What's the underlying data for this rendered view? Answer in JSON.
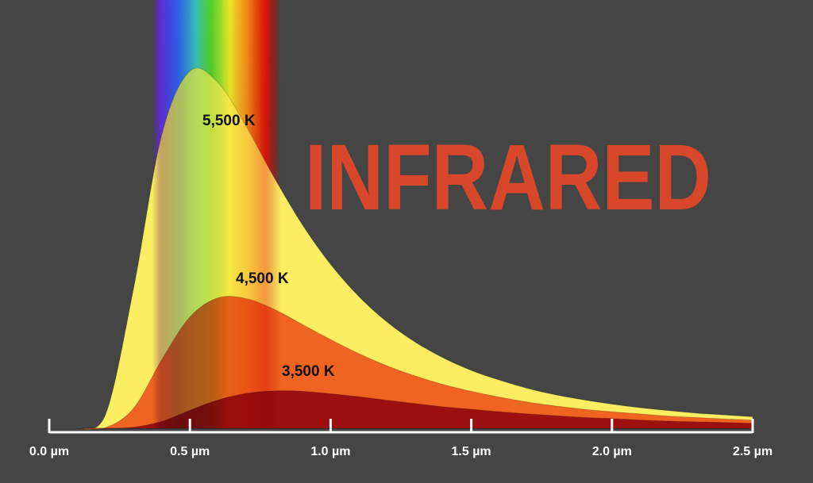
{
  "chart_data": {
    "type": "area",
    "annotation": "INFRARED",
    "x": [
      0.1,
      0.2,
      0.3,
      0.4,
      0.5,
      0.6,
      0.7,
      0.8,
      0.9,
      1.0,
      1.1,
      1.2,
      1.3,
      1.4,
      1.5,
      1.6,
      1.7,
      1.8,
      1.9,
      2.0,
      2.1,
      2.2,
      2.3,
      2.4,
      2.5
    ],
    "series": [
      {
        "name": "5,500 K",
        "color": "#fbee62",
        "values": [
          0,
          3.8,
          38.9,
          81.7,
          99.4,
          96.2,
          84.0,
          69.7,
          56.6,
          45.6,
          36.7,
          29.6,
          24.0,
          19.6,
          16.1,
          13.4,
          11.1,
          9.3,
          7.9,
          6.7,
          5.7,
          4.9,
          4.2,
          3.7,
          3.2
        ]
      },
      {
        "name": "4,500 K",
        "color": "#ee6420",
        "values": [
          0,
          0.2,
          5.6,
          19.1,
          31.0,
          36.3,
          36.1,
          33.1,
          28.9,
          24.7,
          20.8,
          17.4,
          14.6,
          12.2,
          10.3,
          8.7,
          7.3,
          6.2,
          5.3,
          4.6,
          4.0,
          3.4,
          3.0,
          2.6,
          2.3
        ]
      },
      {
        "name": "3,500 K",
        "color": "#9e0f10",
        "values": [
          0,
          0,
          0.3,
          1.9,
          5.0,
          7.9,
          9.7,
          10.4,
          10.3,
          9.6,
          8.8,
          7.8,
          6.9,
          6.0,
          5.3,
          4.6,
          4.0,
          3.5,
          3.0,
          2.7,
          2.3,
          2.0,
          1.8,
          1.6,
          1.4
        ]
      }
    ],
    "xlim": [
      0,
      2.5
    ],
    "ylim": [
      0,
      100
    ],
    "xticks": [
      {
        "value": 0,
        "label": "0.0 µm"
      },
      {
        "value": 0.5,
        "label": "0.5 µm"
      },
      {
        "value": 1.0,
        "label": "1.0 µm"
      },
      {
        "value": 1.5,
        "label": "1.5 µm"
      },
      {
        "value": 2.0,
        "label": "2.0 µm"
      },
      {
        "value": 2.5,
        "label": "2.5 µm"
      }
    ]
  }
}
